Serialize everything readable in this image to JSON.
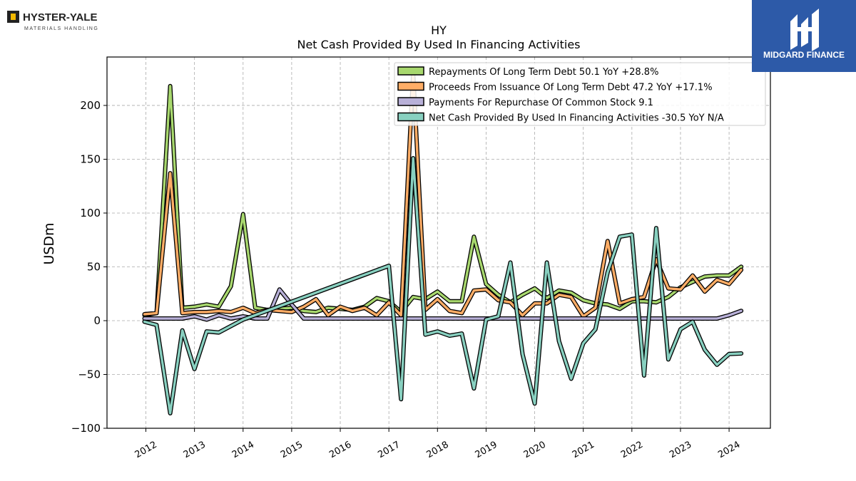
{
  "branding": {
    "left_logo_text": "HYSTER-YALE",
    "left_logo_subtext": "MATERIALS HANDLING",
    "right_logo_text": "MIDGARD FINANCE",
    "right_logo_color": "#2d5aa8"
  },
  "chart_data": {
    "type": "line",
    "title": "HY",
    "subtitle": "Net Cash Provided By Used In Financing Activities",
    "ylabel": "USDm",
    "xlabel": "",
    "ylim": [
      -100,
      245
    ],
    "xlim": [
      2011.2,
      2024.85
    ],
    "yticks": [
      -100,
      -50,
      0,
      50,
      100,
      150,
      200
    ],
    "xticks": [
      2012,
      2013,
      2014,
      2015,
      2016,
      2017,
      2018,
      2019,
      2020,
      2021,
      2022,
      2023,
      2024
    ],
    "grid": true,
    "legend_position": "top-right",
    "series": [
      {
        "name": "Repayments Of Long Term Debt",
        "legend_label": "Repayments Of Long Term Debt  50.1 YoY +28.8%",
        "color": "#a8d86e",
        "points": [
          [
            2011.97,
            5
          ],
          [
            2012.22,
            7
          ],
          [
            2012.5,
            218
          ],
          [
            2012.75,
            12
          ],
          [
            2013.0,
            13
          ],
          [
            2013.25,
            15
          ],
          [
            2013.5,
            13
          ],
          [
            2013.75,
            32
          ],
          [
            2014.0,
            99
          ],
          [
            2014.25,
            12
          ],
          [
            2014.5,
            10
          ],
          [
            2015.0,
            12
          ],
          [
            2015.25,
            9
          ],
          [
            2015.5,
            8
          ],
          [
            2015.75,
            12
          ],
          [
            2016.0,
            11
          ],
          [
            2016.25,
            10
          ],
          [
            2016.5,
            13
          ],
          [
            2016.75,
            21
          ],
          [
            2017.0,
            18
          ],
          [
            2017.25,
            8
          ],
          [
            2017.5,
            22
          ],
          [
            2017.75,
            20
          ],
          [
            2018.0,
            27
          ],
          [
            2018.25,
            18
          ],
          [
            2018.5,
            18
          ],
          [
            2018.75,
            78
          ],
          [
            2019.0,
            34
          ],
          [
            2019.25,
            24
          ],
          [
            2019.5,
            17
          ],
          [
            2019.75,
            24
          ],
          [
            2020.0,
            30
          ],
          [
            2020.25,
            21
          ],
          [
            2020.5,
            28
          ],
          [
            2020.75,
            26
          ],
          [
            2021.0,
            19
          ],
          [
            2021.25,
            16
          ],
          [
            2021.5,
            15
          ],
          [
            2021.75,
            11
          ],
          [
            2022.0,
            18
          ],
          [
            2022.25,
            18
          ],
          [
            2022.5,
            17
          ],
          [
            2022.75,
            22
          ],
          [
            2023.0,
            31
          ],
          [
            2023.25,
            36
          ],
          [
            2023.5,
            41
          ],
          [
            2023.75,
            42
          ],
          [
            2024.0,
            42
          ],
          [
            2024.25,
            50.1
          ]
        ]
      },
      {
        "name": "Proceeds From Issuance Of Long Term Debt",
        "legend_label": "Proceeds From Issuance Of Long Term Debt  47.2 YoY +17.1%",
        "color": "#ffad66",
        "points": [
          [
            2011.97,
            6
          ],
          [
            2012.22,
            7
          ],
          [
            2012.5,
            137
          ],
          [
            2012.75,
            7
          ],
          [
            2013.0,
            8
          ],
          [
            2013.25,
            8
          ],
          [
            2013.5,
            9
          ],
          [
            2013.75,
            8
          ],
          [
            2014.0,
            12
          ],
          [
            2014.25,
            7
          ],
          [
            2014.5,
            10
          ],
          [
            2015.0,
            8
          ],
          [
            2015.25,
            13
          ],
          [
            2015.5,
            20
          ],
          [
            2015.75,
            5
          ],
          [
            2016.0,
            13
          ],
          [
            2016.25,
            9
          ],
          [
            2016.5,
            12
          ],
          [
            2016.75,
            5
          ],
          [
            2017.0,
            17
          ],
          [
            2017.25,
            5
          ],
          [
            2017.5,
            230
          ],
          [
            2017.75,
            10
          ],
          [
            2018.0,
            20
          ],
          [
            2018.25,
            9
          ],
          [
            2018.5,
            7
          ],
          [
            2018.75,
            28
          ],
          [
            2019.0,
            29
          ],
          [
            2019.25,
            19
          ],
          [
            2019.5,
            17
          ],
          [
            2019.75,
            5
          ],
          [
            2020.0,
            16
          ],
          [
            2020.25,
            16
          ],
          [
            2020.5,
            24
          ],
          [
            2020.75,
            22
          ],
          [
            2021.0,
            4
          ],
          [
            2021.25,
            12
          ],
          [
            2021.5,
            74
          ],
          [
            2021.75,
            16
          ],
          [
            2022.0,
            20
          ],
          [
            2022.25,
            22
          ],
          [
            2022.5,
            57
          ],
          [
            2022.75,
            30
          ],
          [
            2023.0,
            29
          ],
          [
            2023.25,
            42
          ],
          [
            2023.5,
            27
          ],
          [
            2023.75,
            38
          ],
          [
            2024.0,
            34
          ],
          [
            2024.25,
            47.2
          ]
        ]
      },
      {
        "name": "Payments For Repurchase Of Common Stock",
        "legend_label": "Payments For Repurchase Of Common Stock  9.1",
        "color": "#b8b0d8",
        "points": [
          [
            2011.97,
            2
          ],
          [
            2012.22,
            2
          ],
          [
            2012.5,
            2
          ],
          [
            2012.75,
            2
          ],
          [
            2013.0,
            4
          ],
          [
            2013.25,
            1
          ],
          [
            2013.5,
            5
          ],
          [
            2013.75,
            2
          ],
          [
            2014.0,
            4
          ],
          [
            2014.25,
            2
          ],
          [
            2014.5,
            2
          ],
          [
            2014.75,
            29
          ],
          [
            2015.0,
            15
          ],
          [
            2015.25,
            2
          ],
          [
            2015.5,
            2
          ],
          [
            2016.0,
            2
          ],
          [
            2017.0,
            2
          ],
          [
            2018.0,
            2
          ],
          [
            2019.0,
            2
          ],
          [
            2020.0,
            2
          ],
          [
            2021.0,
            2
          ],
          [
            2022.0,
            2
          ],
          [
            2023.0,
            2
          ],
          [
            2023.75,
            2
          ],
          [
            2024.0,
            5
          ],
          [
            2024.25,
            9.1
          ]
        ]
      },
      {
        "name": "Net Cash Provided By Used In Financing Activities",
        "legend_label": "Net Cash Provided By Used In Financing Activities  -30.5 YoY N/A",
        "color": "#88d0c0",
        "points": [
          [
            2011.97,
            -1
          ],
          [
            2012.22,
            -4
          ],
          [
            2012.5,
            -86
          ],
          [
            2012.75,
            -9
          ],
          [
            2013.0,
            -45
          ],
          [
            2013.25,
            -10
          ],
          [
            2013.5,
            -11
          ],
          [
            2014.0,
            1
          ],
          [
            2017.0,
            51
          ],
          [
            2017.25,
            -73
          ],
          [
            2017.5,
            151
          ],
          [
            2017.75,
            -13
          ],
          [
            2018.0,
            -10
          ],
          [
            2018.25,
            -14
          ],
          [
            2018.5,
            -12
          ],
          [
            2018.75,
            -63
          ],
          [
            2019.0,
            1
          ],
          [
            2019.25,
            4
          ],
          [
            2019.5,
            54
          ],
          [
            2019.75,
            -31
          ],
          [
            2020.0,
            -77
          ],
          [
            2020.25,
            54
          ],
          [
            2020.5,
            -19
          ],
          [
            2020.75,
            -54
          ],
          [
            2021.0,
            -21
          ],
          [
            2021.25,
            -8
          ],
          [
            2021.5,
            45
          ],
          [
            2021.75,
            78
          ],
          [
            2022.0,
            80
          ],
          [
            2022.25,
            -51
          ],
          [
            2022.5,
            86
          ],
          [
            2022.75,
            -36
          ],
          [
            2023.0,
            -8
          ],
          [
            2023.25,
            -1
          ],
          [
            2023.5,
            -27
          ],
          [
            2023.75,
            -41
          ],
          [
            2024.0,
            -31
          ],
          [
            2024.25,
            -30.5
          ]
        ]
      }
    ]
  }
}
